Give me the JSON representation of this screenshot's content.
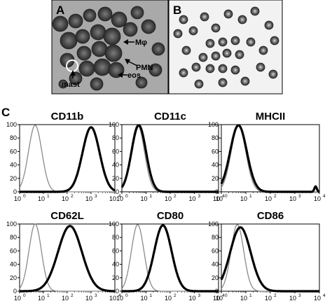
{
  "figure": {
    "panel_labels": {
      "A": "A",
      "B": "B",
      "C": "C"
    },
    "micrograph_annotations": [
      "Mφ",
      "PMN",
      "eos",
      "mast"
    ]
  },
  "chart_data": [
    {
      "type": "area",
      "title": "CD11b",
      "xscale": "log",
      "xlim": [
        1,
        10000
      ],
      "ylim": [
        0,
        100
      ],
      "xticks": [
        "10",
        "10",
        "10",
        "10",
        "10"
      ],
      "xtick_exponents": [
        "0",
        "1",
        "2",
        "3",
        "4"
      ],
      "yticks": [
        "0",
        "20",
        "40",
        "60",
        "80",
        "100"
      ],
      "series": [
        {
          "color": "#8a8a8a",
          "style": "thin",
          "peak_x": 4.5,
          "peak_y": 99,
          "width": 0.28
        },
        {
          "color": "#000000",
          "style": "thick",
          "peak_x": 1000,
          "peak_y": 96,
          "width": 0.36
        }
      ]
    },
    {
      "type": "area",
      "title": "CD11c",
      "xscale": "log",
      "xlim": [
        1,
        10000
      ],
      "ylim": [
        0,
        100
      ],
      "xticks": [
        "10",
        "10",
        "10",
        "10",
        "10"
      ],
      "xtick_exponents": [
        "0",
        "1",
        "2",
        "3",
        "4"
      ],
      "yticks": [
        "0",
        "20",
        "40",
        "60",
        "80",
        "100"
      ],
      "series": [
        {
          "color": "#8a8a8a",
          "style": "thin",
          "peak_x": 4.5,
          "peak_y": 99,
          "width": 0.28
        },
        {
          "color": "#000000",
          "style": "thick",
          "peak_x": 5,
          "peak_y": 99,
          "width": 0.3
        }
      ]
    },
    {
      "type": "area",
      "title": "MHCII",
      "xscale": "log",
      "xlim": [
        1,
        10000
      ],
      "ylim": [
        0,
        100
      ],
      "xticks": [
        "10",
        "10",
        "10",
        "10",
        "10"
      ],
      "xtick_exponents": [
        "0",
        "1",
        "2",
        "3",
        "4"
      ],
      "yticks": [
        "0",
        "20",
        "40",
        "60",
        "80",
        "100"
      ],
      "series": [
        {
          "color": "#8a8a8a",
          "style": "thin",
          "peak_x": 5,
          "peak_y": 98,
          "width": 0.3
        },
        {
          "color": "#000000",
          "style": "thick",
          "peak_x": 5,
          "peak_y": 99,
          "width": 0.34,
          "tail_x": 7000,
          "tail_y": 8
        }
      ]
    },
    {
      "type": "area",
      "title": "CD62L",
      "xscale": "log",
      "xlim": [
        1,
        10000
      ],
      "ylim": [
        0,
        100
      ],
      "xticks": [
        "10",
        "10",
        "10",
        "10",
        "10"
      ],
      "xtick_exponents": [
        "0",
        "1",
        "2",
        "3",
        "4"
      ],
      "yticks": [
        "0",
        "20",
        "40",
        "60",
        "80",
        "100"
      ],
      "series": [
        {
          "color": "#8a8a8a",
          "style": "thin",
          "peak_x": 4.5,
          "peak_y": 100,
          "width": 0.26
        },
        {
          "color": "#000000",
          "style": "thick",
          "peak_x": 130,
          "peak_y": 97,
          "width": 0.5
        }
      ]
    },
    {
      "type": "area",
      "title": "CD80",
      "xscale": "log",
      "xlim": [
        1,
        10000
      ],
      "ylim": [
        0,
        100
      ],
      "xticks": [
        "10",
        "10",
        "10",
        "10",
        "10"
      ],
      "xtick_exponents": [
        "0",
        "1",
        "2",
        "3",
        "4"
      ],
      "yticks": [
        "0",
        "20",
        "40",
        "60",
        "80",
        "100"
      ],
      "series": [
        {
          "color": "#8a8a8a",
          "style": "thin",
          "peak_x": 4.5,
          "peak_y": 99,
          "width": 0.26
        },
        {
          "color": "#000000",
          "style": "thick",
          "peak_x": 50,
          "peak_y": 98,
          "width": 0.36
        }
      ]
    },
    {
      "type": "area",
      "title": "CD86",
      "xscale": "log",
      "xlim": [
        1,
        10000
      ],
      "ylim": [
        0,
        100
      ],
      "xticks": [
        "10",
        "10",
        "10",
        "10",
        "10"
      ],
      "xtick_exponents": [
        "0",
        "1",
        "2",
        "3",
        "4"
      ],
      "yticks": [
        "0",
        "20",
        "40",
        "60",
        "80",
        "100"
      ],
      "series": [
        {
          "color": "#8a8a8a",
          "style": "thin",
          "peak_x": 4.5,
          "peak_y": 99,
          "width": 0.26
        },
        {
          "color": "#000000",
          "style": "thick",
          "peak_x": 6,
          "peak_y": 95,
          "width": 0.42
        }
      ]
    }
  ]
}
